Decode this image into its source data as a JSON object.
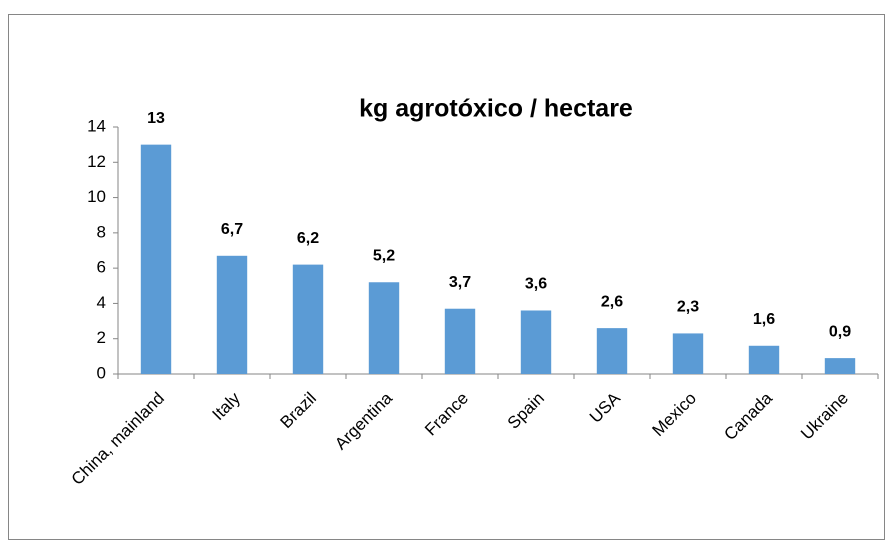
{
  "chart_data": {
    "type": "bar",
    "title": "kg agrotóxico / hectare",
    "categories": [
      "China, mainland",
      "Italy",
      "Brazil",
      "Argentina",
      "France",
      "Spain",
      "USA",
      "Mexico",
      "Canada",
      "Ukraine"
    ],
    "values": [
      13,
      6.7,
      6.2,
      5.2,
      3.7,
      3.6,
      2.6,
      2.3,
      1.6,
      0.9
    ],
    "value_labels": [
      "13",
      "6,7",
      "6,2",
      "5,2",
      "3,7",
      "3,6",
      "2,6",
      "2,3",
      "1,6",
      "0,9"
    ],
    "color": "#5b9bd5",
    "ylim": [
      0,
      14
    ],
    "yticks": [
      0,
      2,
      4,
      6,
      8,
      10,
      12,
      14
    ],
    "grid": false
  }
}
